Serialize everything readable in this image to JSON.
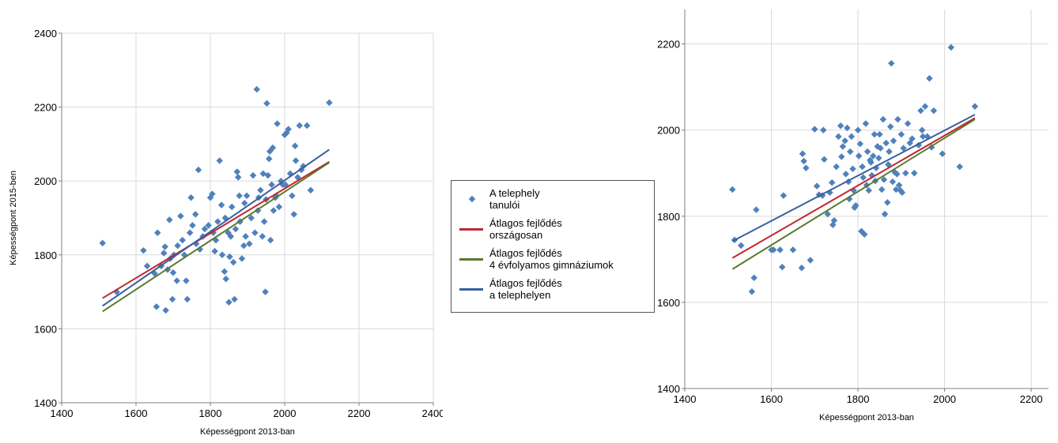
{
  "chart_data": [
    {
      "type": "scatter",
      "xlabel": "Képességpont 2013-ban",
      "ylabel": "Képességpont 2015-ben",
      "xlim": [
        1400,
        2400
      ],
      "ylim": [
        1400,
        2400
      ],
      "xticks": [
        "1400",
        "1600",
        "1800",
        "2000",
        "2200",
        "2400"
      ],
      "yticks": [
        "1400",
        "1600",
        "1800",
        "2000",
        "2200",
        "2400"
      ],
      "grid": true,
      "legend": "right",
      "points": [
        [
          1510,
          1832
        ],
        [
          1548,
          1700
        ],
        [
          1620,
          1812
        ],
        [
          1630,
          1770
        ],
        [
          1650,
          1750
        ],
        [
          1658,
          1860
        ],
        [
          1655,
          1660
        ],
        [
          1668,
          1770
        ],
        [
          1675,
          1805
        ],
        [
          1678,
          1822
        ],
        [
          1680,
          1650
        ],
        [
          1685,
          1760
        ],
        [
          1690,
          1895
        ],
        [
          1692,
          1790
        ],
        [
          1698,
          1680
        ],
        [
          1700,
          1752
        ],
        [
          1702,
          1800
        ],
        [
          1710,
          1730
        ],
        [
          1712,
          1825
        ],
        [
          1720,
          1905
        ],
        [
          1725,
          1840
        ],
        [
          1730,
          1800
        ],
        [
          1735,
          1730
        ],
        [
          1738,
          1680
        ],
        [
          1745,
          1860
        ],
        [
          1748,
          1955
        ],
        [
          1752,
          1880
        ],
        [
          1760,
          1910
        ],
        [
          1762,
          1830
        ],
        [
          1768,
          2030
        ],
        [
          1772,
          1815
        ],
        [
          1780,
          1850
        ],
        [
          1785,
          1870
        ],
        [
          1795,
          1880
        ],
        [
          1800,
          1955
        ],
        [
          1805,
          1965
        ],
        [
          1808,
          1860
        ],
        [
          1812,
          1810
        ],
        [
          1815,
          1840
        ],
        [
          1820,
          1890
        ],
        [
          1825,
          2055
        ],
        [
          1830,
          1935
        ],
        [
          1832,
          1800
        ],
        [
          1838,
          1755
        ],
        [
          1840,
          1900
        ],
        [
          1842,
          1735
        ],
        [
          1848,
          1860
        ],
        [
          1850,
          1672
        ],
        [
          1852,
          1795
        ],
        [
          1855,
          1850
        ],
        [
          1858,
          1930
        ],
        [
          1862,
          1780
        ],
        [
          1865,
          1680
        ],
        [
          1868,
          1870
        ],
        [
          1872,
          2025
        ],
        [
          1875,
          2010
        ],
        [
          1878,
          1960
        ],
        [
          1880,
          1890
        ],
        [
          1885,
          1790
        ],
        [
          1890,
          1825
        ],
        [
          1892,
          1940
        ],
        [
          1895,
          1850
        ],
        [
          1898,
          1960
        ],
        [
          1905,
          1830
        ],
        [
          1910,
          1900
        ],
        [
          1915,
          2015
        ],
        [
          1920,
          1860
        ],
        [
          1925,
          2248
        ],
        [
          1928,
          1920
        ],
        [
          1930,
          1955
        ],
        [
          1935,
          1975
        ],
        [
          1940,
          1850
        ],
        [
          1942,
          2020
        ],
        [
          1945,
          1890
        ],
        [
          1948,
          1700
        ],
        [
          1950,
          1950
        ],
        [
          1952,
          2210
        ],
        [
          1955,
          2015
        ],
        [
          1958,
          2060
        ],
        [
          1960,
          2080
        ],
        [
          1962,
          1840
        ],
        [
          1965,
          1990
        ],
        [
          1968,
          2090
        ],
        [
          1970,
          1920
        ],
        [
          1975,
          1955
        ],
        [
          1978,
          1960
        ],
        [
          1980,
          2155
        ],
        [
          1985,
          1930
        ],
        [
          1990,
          2000
        ],
        [
          1995,
          1990
        ],
        [
          2000,
          2125
        ],
        [
          2002,
          1990
        ],
        [
          2005,
          2130
        ],
        [
          2010,
          2140
        ],
        [
          2015,
          2020
        ],
        [
          2020,
          1960
        ],
        [
          2025,
          1910
        ],
        [
          2028,
          2095
        ],
        [
          2030,
          2055
        ],
        [
          2035,
          2010
        ],
        [
          2040,
          2150
        ],
        [
          2045,
          2030
        ],
        [
          2050,
          2040
        ],
        [
          2060,
          2150
        ],
        [
          2070,
          1975
        ],
        [
          2120,
          2212
        ]
      ],
      "series": [
        {
          "name": "Átlagos fejlődés országosan",
          "x": [
            1510,
            2120
          ],
          "y": [
            1683,
            2052
          ]
        },
        {
          "name": "Átlagos fejlődés 4 évfolyamos gimnáziumok",
          "x": [
            1510,
            2120
          ],
          "y": [
            1647,
            2050
          ]
        },
        {
          "name": "Átlagos fejlődés a telephelyen",
          "x": [
            1510,
            2120
          ],
          "y": [
            1662,
            2085
          ]
        }
      ]
    },
    {
      "type": "scatter",
      "xlabel": "Képességpont 2013-ban",
      "ylabel": "",
      "xlim": [
        1400,
        2240
      ],
      "ylim": [
        1400,
        2280
      ],
      "xticks": [
        "1400",
        "1600",
        "1800",
        "2000",
        "2200"
      ],
      "yticks": [
        "1400",
        "1600",
        "1800",
        "2000",
        "2200"
      ],
      "grid": true,
      "points": [
        [
          1510,
          1862
        ],
        [
          1515,
          1745
        ],
        [
          1530,
          1732
        ],
        [
          1555,
          1625
        ],
        [
          1560,
          1657
        ],
        [
          1565,
          1815
        ],
        [
          1600,
          1722
        ],
        [
          1605,
          1722
        ],
        [
          1620,
          1722
        ],
        [
          1625,
          1682
        ],
        [
          1628,
          1848
        ],
        [
          1650,
          1722
        ],
        [
          1670,
          1680
        ],
        [
          1672,
          1945
        ],
        [
          1675,
          1928
        ],
        [
          1680,
          1912
        ],
        [
          1690,
          1698
        ],
        [
          1700,
          2002
        ],
        [
          1705,
          1870
        ],
        [
          1710,
          1850
        ],
        [
          1718,
          1848
        ],
        [
          1720,
          2000
        ],
        [
          1722,
          1932
        ],
        [
          1730,
          1805
        ],
        [
          1735,
          1855
        ],
        [
          1740,
          1878
        ],
        [
          1742,
          1780
        ],
        [
          1745,
          1790
        ],
        [
          1750,
          1915
        ],
        [
          1755,
          1985
        ],
        [
          1760,
          2010
        ],
        [
          1762,
          1938
        ],
        [
          1765,
          1962
        ],
        [
          1770,
          1975
        ],
        [
          1772,
          1898
        ],
        [
          1775,
          2005
        ],
        [
          1778,
          1880
        ],
        [
          1780,
          1840
        ],
        [
          1782,
          1950
        ],
        [
          1785,
          1985
        ],
        [
          1788,
          1910
        ],
        [
          1790,
          1860
        ],
        [
          1792,
          1820
        ],
        [
          1795,
          1825
        ],
        [
          1800,
          2000
        ],
        [
          1802,
          1940
        ],
        [
          1805,
          1968
        ],
        [
          1808,
          1765
        ],
        [
          1810,
          1915
        ],
        [
          1812,
          1890
        ],
        [
          1815,
          1758
        ],
        [
          1818,
          2015
        ],
        [
          1820,
          1872
        ],
        [
          1822,
          1950
        ],
        [
          1825,
          1860
        ],
        [
          1828,
          1930
        ],
        [
          1830,
          1925
        ],
        [
          1832,
          1895
        ],
        [
          1835,
          1940
        ],
        [
          1838,
          1990
        ],
        [
          1840,
          1882
        ],
        [
          1842,
          1912
        ],
        [
          1845,
          1962
        ],
        [
          1848,
          1935
        ],
        [
          1850,
          1990
        ],
        [
          1852,
          1958
        ],
        [
          1855,
          1862
        ],
        [
          1858,
          2025
        ],
        [
          1860,
          1885
        ],
        [
          1862,
          1805
        ],
        [
          1865,
          1970
        ],
        [
          1868,
          1832
        ],
        [
          1870,
          1920
        ],
        [
          1872,
          1950
        ],
        [
          1875,
          2008
        ],
        [
          1877,
          2155
        ],
        [
          1880,
          1880
        ],
        [
          1882,
          1975
        ],
        [
          1885,
          1902
        ],
        [
          1888,
          1862
        ],
        [
          1890,
          1898
        ],
        [
          1892,
          2025
        ],
        [
          1895,
          1872
        ],
        [
          1898,
          1860
        ],
        [
          1900,
          1990
        ],
        [
          1902,
          1855
        ],
        [
          1905,
          1958
        ],
        [
          1910,
          1900
        ],
        [
          1915,
          2015
        ],
        [
          1920,
          1970
        ],
        [
          1925,
          1980
        ],
        [
          1930,
          1900
        ],
        [
          1940,
          1965
        ],
        [
          1945,
          2045
        ],
        [
          1948,
          2000
        ],
        [
          1950,
          1985
        ],
        [
          1955,
          2055
        ],
        [
          1960,
          1985
        ],
        [
          1965,
          2120
        ],
        [
          1970,
          1960
        ],
        [
          1975,
          2045
        ],
        [
          1995,
          1945
        ],
        [
          2015,
          2192
        ],
        [
          2035,
          1915
        ],
        [
          2070,
          2055
        ]
      ],
      "series": [
        {
          "name": "Átlagos fejlődés országosan",
          "x": [
            1510,
            2070
          ],
          "y": [
            1703,
            2028
          ]
        },
        {
          "name": "Átlagos fejlődés 4 évfolyamos gimnáziumok",
          "x": [
            1510,
            2070
          ],
          "y": [
            1677,
            2025
          ]
        },
        {
          "name": "Átlagos fejlődés a telephelyen",
          "x": [
            1510,
            2070
          ],
          "y": [
            1742,
            2036
          ]
        }
      ]
    }
  ],
  "legend": {
    "items": [
      {
        "label": "A telephely tanulói",
        "line1": "A telephely",
        "line2": "tanulói",
        "kind": "marker",
        "color": "#4f81bd"
      },
      {
        "label": "Átlagos fejlődés országosan",
        "line1": "Átlagos fejlődés",
        "line2": "országosan",
        "kind": "line",
        "color": "#c0272d"
      },
      {
        "label": "Átlagos fejlődés 4 évfolyamos gimnáziumok",
        "line1": "Átlagos fejlődés",
        "line2": "4 évfolyamos gimnáziumok",
        "kind": "line",
        "color": "#5a7a2e"
      },
      {
        "label": "Átlagos fejlődés a telephelyen",
        "line1": "Átlagos fejlődés",
        "line2": "a telephelyen",
        "kind": "line",
        "color": "#3a5f9c"
      }
    ]
  },
  "colors": {
    "marker": "#4f81bd",
    "line_national": "#c0272d",
    "line_gymnasium": "#5a7a2e",
    "line_site": "#3a5f9c",
    "grid": "#d9d9d9"
  }
}
